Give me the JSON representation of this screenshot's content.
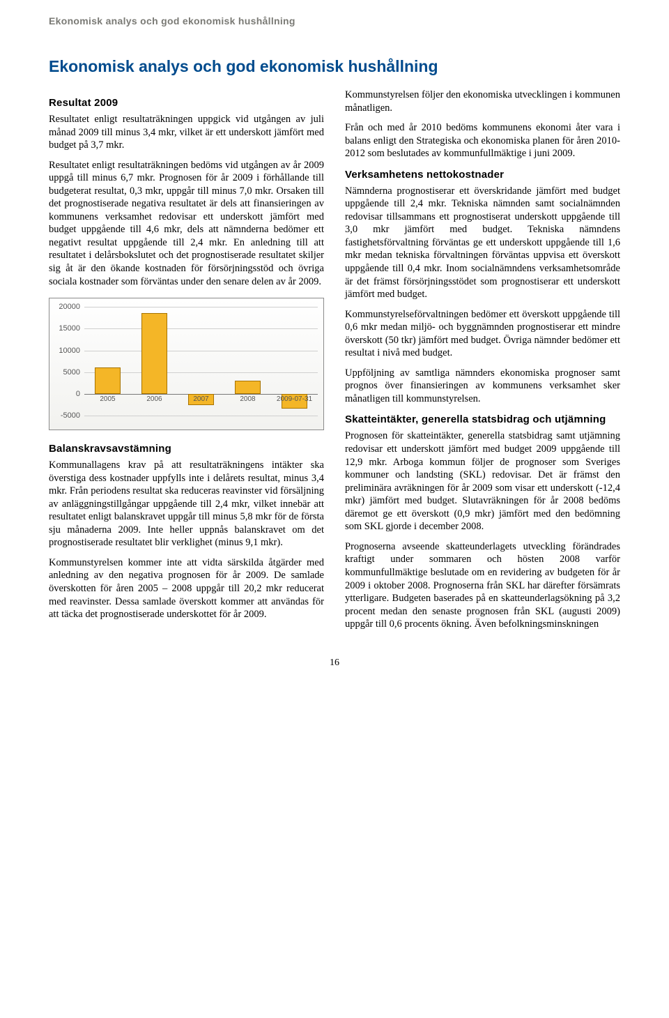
{
  "running_head": "Ekonomisk analys och god ekonomisk hushållning",
  "title": "Ekonomisk analys och god ekonomisk hushållning",
  "left": {
    "h_resultat": "Resultat 2009",
    "p1": "Resultatet enligt resultaträkningen uppgick vid utgången av juli månad 2009 till minus 3,4 mkr, vilket är ett underskott jämfört med budget på 3,7 mkr.",
    "p2": "Resultatet enligt resultaträkningen bedöms vid utgången av år 2009 uppgå till minus 6,7 mkr. Prognosen för år 2009 i förhållande till budgeterat resultat, 0,3 mkr, uppgår till minus 7,0 mkr. Orsaken till det prognostiserade negativa resultatet är dels att finansieringen av kommunens verksamhet redovisar ett underskott jämfört med budget uppgående till 4,6 mkr, dels att nämnderna bedömer ett negativt resultat uppgående till 2,4 mkr. En anledning till att resultatet i delårsbokslutet och det prognostiserade resultatet skiljer sig åt är den ökande kostnaden för försörjningsstöd och övriga sociala kostnader som förväntas under den senare delen av år 2009.",
    "h_balans": "Balanskravsavstämning",
    "p3": "Kommunallagens krav på att resultaträkningens intäkter ska överstiga dess kostnader uppfylls inte i delårets resultat, minus 3,4 mkr. Från periodens resultat ska reduceras reavinster vid försäljning av anläggningstillgångar uppgående till 2,4 mkr, vilket innebär att resultatet enligt balanskravet uppgår till minus 5,8 mkr för de första sju månaderna 2009. Inte heller uppnås balanskravet om det prognostiserade resultatet blir verklighet (minus 9,1 mkr).",
    "p4": "Kommunstyrelsen kommer inte att vidta särskilda åtgärder med anledning av den negativa prognosen för år 2009. De samlade överskotten för åren 2005 – 2008 uppgår till 20,2 mkr reducerat med reavinster. Dessa samlade överskott kommer att användas för att täcka det prognostiserade underskottet för år 2009."
  },
  "right": {
    "p1": "Kommunstyrelsen följer den ekonomiska utvecklingen i kommunen månatligen.",
    "p2": "Från och med år 2010 bedöms kommunens ekonomi åter vara i balans enligt den Strategiska och ekonomiska planen för åren 2010-2012 som beslutades av kommunfullmäktige i juni 2009.",
    "h_verk": "Verksamhetens nettokostnader",
    "p3": "Nämnderna prognostiserar ett överskridande jämfört med budget uppgående till 2,4 mkr. Tekniska nämnden samt socialnämnden redovisar tillsammans ett prognostiserat underskott uppgående till 3,0 mkr jämfört med budget. Tekniska nämndens fastighetsförvaltning förväntas ge ett underskott uppgående till 1,6 mkr medan tekniska förvaltningen förväntas uppvisa ett överskott uppgående till 0,4 mkr. Inom socialnämndens verksamhetsområde är det främst försörjningsstödet som prognostiserar ett underskott jämfört med budget.",
    "p4": "Kommunstyrelseförvaltningen bedömer ett överskott uppgående till 0,6 mkr medan miljö- och byggnämnden prognostiserar ett mindre överskott (50 tkr) jämfört med budget. Övriga nämnder bedömer ett resultat i nivå med budget.",
    "p5": "Uppföljning av samtliga nämnders ekonomiska prognoser samt prognos över finansieringen av kommunens verksamhet sker månatligen till kommunstyrelsen.",
    "h_skatt": "Skatteintäkter, generella statsbidrag och utjämning",
    "p6": "Prognosen för skatteintäkter, generella statsbidrag samt utjämning redovisar ett underskott jämfört med budget 2009 uppgående till 12,9 mkr. Arboga kommun följer de prognoser som Sveriges kommuner och landsting (SKL) redovisar. Det är främst den preliminära avräkningen för år 2009 som visar ett underskott (-12,4 mkr) jämfört med budget. Slutavräkningen för år 2008 bedöms däremot ge ett överskott (0,9 mkr) jämfört med den bedömning som SKL gjorde i december 2008.",
    "p7": "Prognoserna avseende skatteunderlagets utveckling förändrades kraftigt under sommaren och hösten 2008 varför kommunfullmäktige beslutade om en revidering av budgeten för år 2009 i oktober 2008. Prognoserna från SKL har därefter försämrats ytterligare. Budgeten baserades på en skatteunderlagsökning på 3,2 procent medan den senaste prognosen från SKL (augusti 2009) uppgår till 0,6 procents ökning. Även befolkningsminskningen"
  },
  "chart": {
    "type": "bar",
    "categories": [
      "2005",
      "2006",
      "2007",
      "2008",
      "2009-07-31"
    ],
    "values": [
      6000,
      18500,
      -2500,
      3000,
      -3400
    ],
    "bar_color": "#f4b627",
    "bar_border": "#a77300",
    "ymin": -5000,
    "ymax": 20000,
    "ytick_step": 5000,
    "yticks": [
      -5000,
      0,
      5000,
      10000,
      15000,
      20000
    ],
    "background_top": "#ffffff",
    "background_bottom": "#f2f2ef",
    "grid_color": "#cfcfcf",
    "axis_color": "#777777",
    "label_fontsize": 11,
    "xlabel_fontsize": 10,
    "bar_width_ratio": 0.55
  },
  "page_number": "16"
}
